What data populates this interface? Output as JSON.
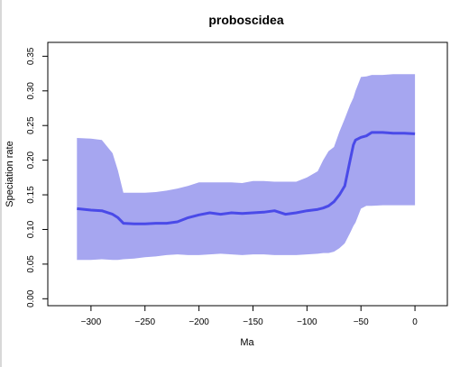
{
  "chart_data": {
    "type": "area",
    "title": "proboscidea",
    "xlabel": "Ma",
    "ylabel": "Speciation rate",
    "xlim": [
      -340,
      30
    ],
    "ylim": [
      -0.01,
      0.37
    ],
    "xticks": [
      -300,
      -250,
      -200,
      -150,
      -100,
      -50,
      0
    ],
    "yticks": [
      0.0,
      0.05,
      0.1,
      0.15,
      0.2,
      0.25,
      0.3,
      0.35
    ],
    "xtick_labels": [
      "−300",
      "−250",
      "−200",
      "−150",
      "−100",
      "−50",
      "0"
    ],
    "ytick_labels": [
      "0.00",
      "0.05",
      "0.10",
      "0.15",
      "0.20",
      "0.25",
      "0.30",
      "0.35"
    ],
    "grid": false,
    "band_color": "#a6a6f0",
    "line_color": "#4a4ae8",
    "series": [
      {
        "values_x": [
          -313,
          -300,
          -290,
          -280,
          -275,
          -270,
          -260,
          -250,
          -240,
          -230,
          -220,
          -210,
          -200,
          -190,
          -180,
          -170,
          -160,
          -150,
          -140,
          -130,
          -120,
          -110,
          -100,
          -90,
          -85,
          -80,
          -75,
          -70,
          -65,
          -60,
          -57,
          -55,
          -50,
          -45,
          -40,
          -30,
          -20,
          -10,
          0
        ],
        "mean": [
          0.13,
          0.128,
          0.127,
          0.122,
          0.117,
          0.109,
          0.108,
          0.108,
          0.109,
          0.109,
          0.111,
          0.117,
          0.121,
          0.124,
          0.122,
          0.124,
          0.123,
          0.124,
          0.125,
          0.127,
          0.122,
          0.124,
          0.127,
          0.129,
          0.131,
          0.134,
          0.14,
          0.15,
          0.163,
          0.2,
          0.222,
          0.229,
          0.233,
          0.235,
          0.24,
          0.24,
          0.239,
          0.239,
          0.238
        ],
        "lower": [
          0.056,
          0.056,
          0.057,
          0.056,
          0.056,
          0.057,
          0.058,
          0.06,
          0.061,
          0.063,
          0.064,
          0.063,
          0.063,
          0.064,
          0.065,
          0.064,
          0.063,
          0.064,
          0.064,
          0.063,
          0.063,
          0.063,
          0.064,
          0.065,
          0.066,
          0.066,
          0.068,
          0.073,
          0.08,
          0.095,
          0.105,
          0.11,
          0.13,
          0.134,
          0.134,
          0.135,
          0.135,
          0.135,
          0.135
        ],
        "upper": [
          0.232,
          0.231,
          0.229,
          0.21,
          0.185,
          0.153,
          0.153,
          0.153,
          0.154,
          0.156,
          0.159,
          0.163,
          0.168,
          0.168,
          0.168,
          0.168,
          0.167,
          0.17,
          0.17,
          0.169,
          0.169,
          0.169,
          0.175,
          0.184,
          0.2,
          0.213,
          0.219,
          0.241,
          0.26,
          0.28,
          0.29,
          0.3,
          0.32,
          0.321,
          0.323,
          0.323,
          0.324,
          0.324,
          0.324
        ]
      }
    ]
  }
}
